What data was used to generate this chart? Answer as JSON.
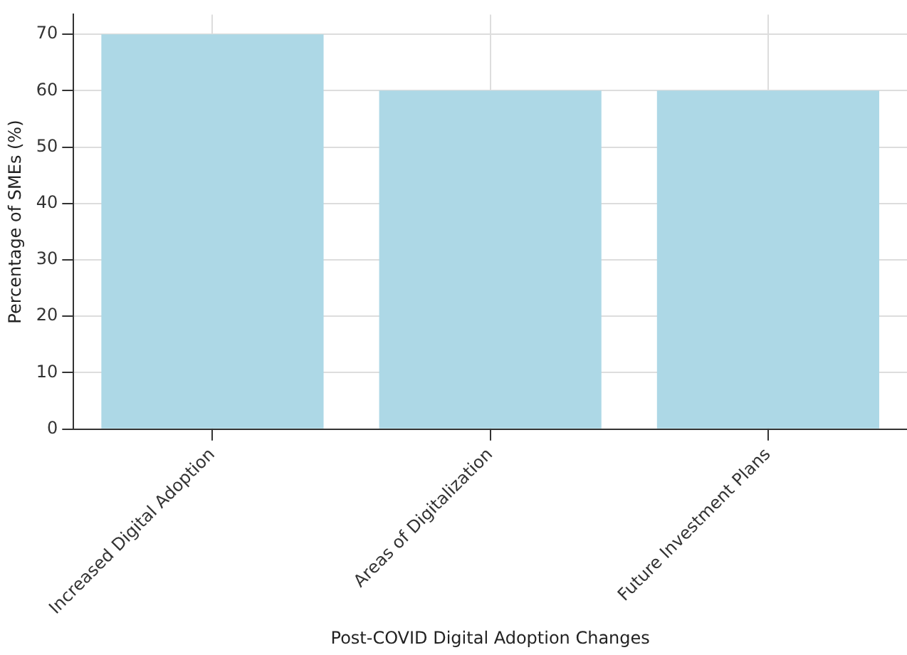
{
  "chart_data": {
    "type": "bar",
    "xlabel": "Post-COVID Digital Adoption Changes",
    "ylabel": "Percentage of SMEs (%)",
    "categories": [
      "Increased Digital Adoption",
      "Areas of Digitalization",
      "Future Investment Plans"
    ],
    "values": [
      70,
      60,
      60
    ],
    "color": "#add8e6",
    "ylim": [
      0,
      73.5
    ],
    "yticks": [
      0,
      10,
      20,
      30,
      40,
      50,
      60,
      70
    ],
    "grid": true,
    "legend": false
  }
}
